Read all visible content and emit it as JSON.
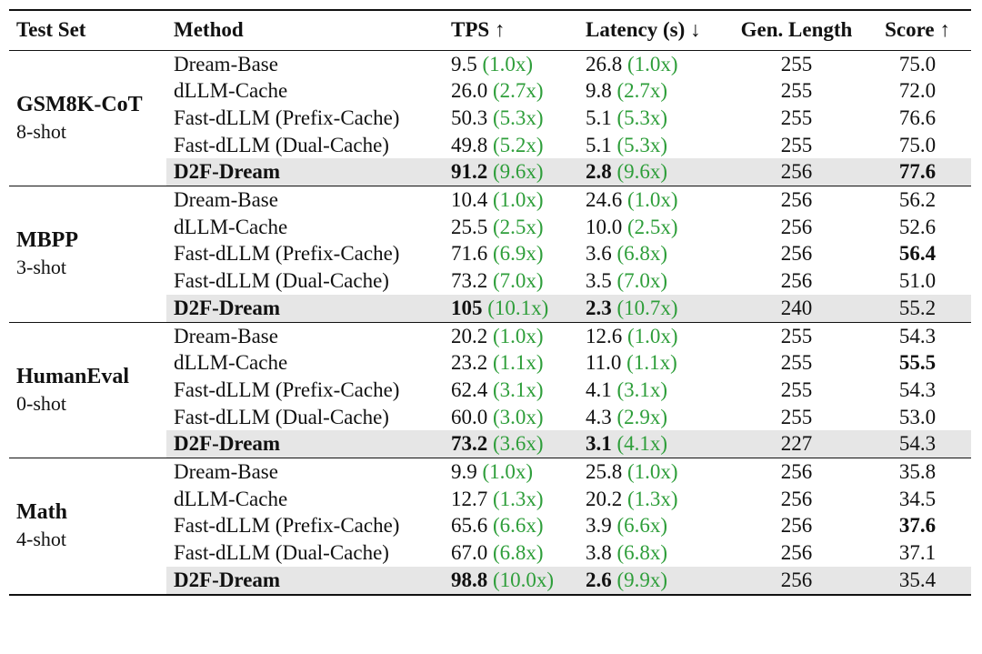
{
  "headers": {
    "test_set": "Test Set",
    "method": "Method",
    "tps": "TPS ↑",
    "latency": "Latency (s) ↓",
    "gen_length": "Gen. Length",
    "score": "Score ↑"
  },
  "groups": [
    {
      "name": "GSM8K-CoT",
      "shot": "8-shot",
      "rows": [
        {
          "method": "Dream-Base",
          "tps": "9.5",
          "tps_ratio": "(1.0x)",
          "latency": "26.8",
          "latency_ratio": "(1.0x)",
          "gen_length": "255",
          "score": "75.0",
          "tps_bold": false,
          "latency_bold": false,
          "score_bold": false,
          "highlight": false
        },
        {
          "method": "dLLM-Cache",
          "tps": "26.0",
          "tps_ratio": "(2.7x)",
          "latency": "9.8",
          "latency_ratio": "(2.7x)",
          "gen_length": "255",
          "score": "72.0",
          "tps_bold": false,
          "latency_bold": false,
          "score_bold": false,
          "highlight": false
        },
        {
          "method": "Fast-dLLM (Prefix-Cache)",
          "tps": "50.3",
          "tps_ratio": "(5.3x)",
          "latency": "5.1",
          "latency_ratio": "(5.3x)",
          "gen_length": "255",
          "score": "76.6",
          "tps_bold": false,
          "latency_bold": false,
          "score_bold": false,
          "highlight": false
        },
        {
          "method": "Fast-dLLM (Dual-Cache)",
          "tps": "49.8",
          "tps_ratio": "(5.2x)",
          "latency": "5.1",
          "latency_ratio": "(5.3x)",
          "gen_length": "255",
          "score": "75.0",
          "tps_bold": false,
          "latency_bold": false,
          "score_bold": false,
          "highlight": false
        },
        {
          "method": "D2F-Dream",
          "tps": "91.2",
          "tps_ratio": "(9.6x)",
          "latency": "2.8",
          "latency_ratio": "(9.6x)",
          "gen_length": "256",
          "score": "77.6",
          "tps_bold": true,
          "latency_bold": true,
          "score_bold": true,
          "highlight": true
        }
      ]
    },
    {
      "name": "MBPP",
      "shot": "3-shot",
      "rows": [
        {
          "method": "Dream-Base",
          "tps": "10.4",
          "tps_ratio": "(1.0x)",
          "latency": "24.6",
          "latency_ratio": "(1.0x)",
          "gen_length": "256",
          "score": "56.2",
          "tps_bold": false,
          "latency_bold": false,
          "score_bold": false,
          "highlight": false
        },
        {
          "method": "dLLM-Cache",
          "tps": "25.5",
          "tps_ratio": "(2.5x)",
          "latency": "10.0",
          "latency_ratio": "(2.5x)",
          "gen_length": "256",
          "score": "52.6",
          "tps_bold": false,
          "latency_bold": false,
          "score_bold": false,
          "highlight": false
        },
        {
          "method": "Fast-dLLM (Prefix-Cache)",
          "tps": "71.6",
          "tps_ratio": "(6.9x)",
          "latency": "3.6",
          "latency_ratio": "(6.8x)",
          "gen_length": "256",
          "score": "56.4",
          "tps_bold": false,
          "latency_bold": false,
          "score_bold": true,
          "highlight": false
        },
        {
          "method": "Fast-dLLM (Dual-Cache)",
          "tps": "73.2",
          "tps_ratio": "(7.0x)",
          "latency": "3.5",
          "latency_ratio": "(7.0x)",
          "gen_length": "256",
          "score": "51.0",
          "tps_bold": false,
          "latency_bold": false,
          "score_bold": false,
          "highlight": false
        },
        {
          "method": "D2F-Dream",
          "tps": "105",
          "tps_ratio": "(10.1x)",
          "latency": "2.3",
          "latency_ratio": "(10.7x)",
          "gen_length": "240",
          "score": "55.2",
          "tps_bold": true,
          "latency_bold": true,
          "score_bold": false,
          "highlight": true
        }
      ]
    },
    {
      "name": "HumanEval",
      "shot": "0-shot",
      "rows": [
        {
          "method": "Dream-Base",
          "tps": "20.2",
          "tps_ratio": "(1.0x)",
          "latency": "12.6",
          "latency_ratio": "(1.0x)",
          "gen_length": "255",
          "score": "54.3",
          "tps_bold": false,
          "latency_bold": false,
          "score_bold": false,
          "highlight": false
        },
        {
          "method": "dLLM-Cache",
          "tps": "23.2",
          "tps_ratio": "(1.1x)",
          "latency": "11.0",
          "latency_ratio": "(1.1x)",
          "gen_length": "255",
          "score": "55.5",
          "tps_bold": false,
          "latency_bold": false,
          "score_bold": true,
          "highlight": false
        },
        {
          "method": "Fast-dLLM (Prefix-Cache)",
          "tps": "62.4",
          "tps_ratio": "(3.1x)",
          "latency": "4.1",
          "latency_ratio": "(3.1x)",
          "gen_length": "255",
          "score": "54.3",
          "tps_bold": false,
          "latency_bold": false,
          "score_bold": false,
          "highlight": false
        },
        {
          "method": "Fast-dLLM (Dual-Cache)",
          "tps": "60.0",
          "tps_ratio": "(3.0x)",
          "latency": "4.3",
          "latency_ratio": "(2.9x)",
          "gen_length": "255",
          "score": "53.0",
          "tps_bold": false,
          "latency_bold": false,
          "score_bold": false,
          "highlight": false
        },
        {
          "method": "D2F-Dream",
          "tps": "73.2",
          "tps_ratio": "(3.6x)",
          "latency": "3.1",
          "latency_ratio": "(4.1x)",
          "gen_length": "227",
          "score": "54.3",
          "tps_bold": true,
          "latency_bold": true,
          "score_bold": false,
          "highlight": true
        }
      ]
    },
    {
      "name": "Math",
      "shot": "4-shot",
      "rows": [
        {
          "method": "Dream-Base",
          "tps": "9.9",
          "tps_ratio": "(1.0x)",
          "latency": "25.8",
          "latency_ratio": "(1.0x)",
          "gen_length": "256",
          "score": "35.8",
          "tps_bold": false,
          "latency_bold": false,
          "score_bold": false,
          "highlight": false
        },
        {
          "method": "dLLM-Cache",
          "tps": "12.7",
          "tps_ratio": "(1.3x)",
          "latency": "20.2",
          "latency_ratio": "(1.3x)",
          "gen_length": "256",
          "score": "34.5",
          "tps_bold": false,
          "latency_bold": false,
          "score_bold": false,
          "highlight": false
        },
        {
          "method": "Fast-dLLM (Prefix-Cache)",
          "tps": "65.6",
          "tps_ratio": "(6.6x)",
          "latency": "3.9",
          "latency_ratio": "(6.6x)",
          "gen_length": "256",
          "score": "37.6",
          "tps_bold": false,
          "latency_bold": false,
          "score_bold": true,
          "highlight": false
        },
        {
          "method": "Fast-dLLM (Dual-Cache)",
          "tps": "67.0",
          "tps_ratio": "(6.8x)",
          "latency": "3.8",
          "latency_ratio": "(6.8x)",
          "gen_length": "256",
          "score": "37.1",
          "tps_bold": false,
          "latency_bold": false,
          "score_bold": false,
          "highlight": false
        },
        {
          "method": "D2F-Dream",
          "tps": "98.8",
          "tps_ratio": "(10.0x)",
          "latency": "2.6",
          "latency_ratio": "(9.9x)",
          "gen_length": "256",
          "score": "35.4",
          "tps_bold": true,
          "latency_bold": true,
          "score_bold": false,
          "highlight": true
        }
      ]
    }
  ],
  "colors": {
    "speedup_ratio": "#2e9e3a",
    "highlight_row": "#e6e6e6",
    "rule": "#111111"
  }
}
